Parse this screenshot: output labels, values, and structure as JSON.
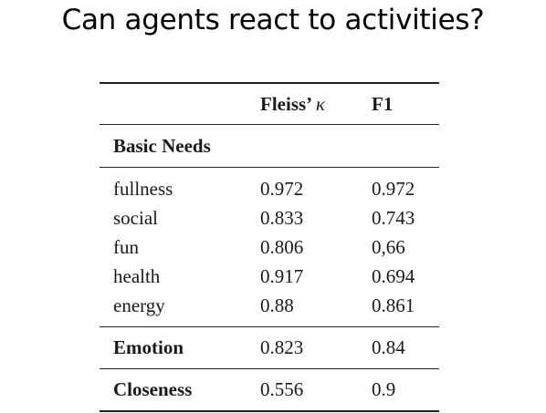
{
  "slide": {
    "title": "Can agents react to activities?"
  },
  "table": {
    "header": {
      "col1": "",
      "col2_prefix": "Fleiss’ ",
      "col2_symbol": "κ",
      "col3": "F1"
    },
    "basic_needs_label": "Basic Needs",
    "basic_needs_rows": [
      {
        "name": "fullness",
        "kappa": "0.972",
        "f1": "0.972"
      },
      {
        "name": "social",
        "kappa": "0.833",
        "f1": "0.743"
      },
      {
        "name": "fun",
        "kappa": "0.806",
        "f1": "0,66"
      },
      {
        "name": "health",
        "kappa": "0.917",
        "f1": "0.694"
      },
      {
        "name": "energy",
        "kappa": "0.88",
        "f1": "0.861"
      }
    ],
    "emotion": {
      "name": "Emotion",
      "kappa": "0.823",
      "f1": "0.84"
    },
    "closeness": {
      "name": "Closeness",
      "kappa": "0.556",
      "f1": "0.9"
    }
  }
}
